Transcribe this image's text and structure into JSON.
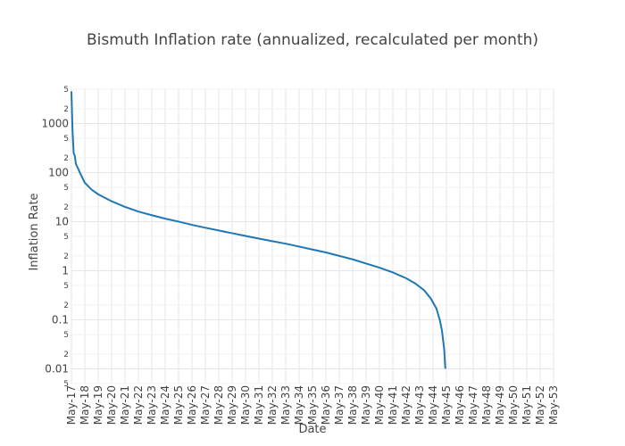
{
  "chart_data": {
    "type": "line",
    "title": "Bismuth Inflation rate (annualized, recalculated per month)",
    "xlabel": "Date",
    "ylabel": "Inflation Rate",
    "y_scale": "log",
    "ylim": [
      0.005,
      5000
    ],
    "grid": true,
    "legend": "none",
    "x_tick_labels": [
      "May-17",
      "May-18",
      "May-19",
      "May-20",
      "May-21",
      "May-22",
      "May-23",
      "May-24",
      "May-25",
      "May-26",
      "May-27",
      "May-28",
      "May-29",
      "May-30",
      "May-31",
      "May-32",
      "May-33",
      "May-34",
      "May-35",
      "May-36",
      "May-37",
      "May-38",
      "May-39",
      "May-40",
      "May-41",
      "May-42",
      "May-43",
      "May-44",
      "May-45",
      "May-46",
      "May-47",
      "May-48",
      "May-49",
      "May-50",
      "May-51",
      "May-52",
      "May-53"
    ],
    "y_major_ticks": [
      {
        "value": 0.01,
        "label": "0.01"
      },
      {
        "value": 0.1,
        "label": "0.1"
      },
      {
        "value": 1,
        "label": "1"
      },
      {
        "value": 10,
        "label": "10"
      },
      {
        "value": 100,
        "label": "100"
      },
      {
        "value": 1000,
        "label": "1000"
      }
    ],
    "y_minor_ticks": [
      {
        "value": 0.005,
        "label": "5"
      },
      {
        "value": 0.02,
        "label": "2"
      },
      {
        "value": 0.05,
        "label": "5"
      },
      {
        "value": 0.2,
        "label": "2"
      },
      {
        "value": 0.5,
        "label": "5"
      },
      {
        "value": 2,
        "label": "2"
      },
      {
        "value": 5,
        "label": "5"
      },
      {
        "value": 20,
        "label": "2"
      },
      {
        "value": 50,
        "label": "5"
      },
      {
        "value": 200,
        "label": "2"
      },
      {
        "value": 500,
        "label": "5"
      },
      {
        "value": 2000,
        "label": "2"
      },
      {
        "value": 5000,
        "label": "5"
      }
    ],
    "series": [
      {
        "color": "#1f77b4",
        "points": [
          {
            "x": "2017-05",
            "y": 4500
          },
          {
            "x": "2017-06",
            "y": 700
          },
          {
            "x": "2017-07",
            "y": 250
          },
          {
            "x": "2017-08",
            "y": 220
          },
          {
            "x": "2017-09",
            "y": 150
          },
          {
            "x": "2017-11",
            "y": 120
          },
          {
            "x": "2018-01",
            "y": 95
          },
          {
            "x": "2018-05",
            "y": 62
          },
          {
            "x": "2018-11",
            "y": 45
          },
          {
            "x": "2019-05",
            "y": 36
          },
          {
            "x": "2020-05",
            "y": 26
          },
          {
            "x": "2021-05",
            "y": 20
          },
          {
            "x": "2022-05",
            "y": 16
          },
          {
            "x": "2023-05",
            "y": 13.5
          },
          {
            "x": "2024-05",
            "y": 11.5
          },
          {
            "x": "2025-05",
            "y": 10
          },
          {
            "x": "2026-05",
            "y": 8.6
          },
          {
            "x": "2027-05",
            "y": 7.5
          },
          {
            "x": "2028-05",
            "y": 6.6
          },
          {
            "x": "2029-05",
            "y": 5.8
          },
          {
            "x": "2030-05",
            "y": 5.1
          },
          {
            "x": "2031-05",
            "y": 4.5
          },
          {
            "x": "2032-05",
            "y": 4.0
          },
          {
            "x": "2033-05",
            "y": 3.55
          },
          {
            "x": "2034-05",
            "y": 3.1
          },
          {
            "x": "2035-05",
            "y": 2.7
          },
          {
            "x": "2036-05",
            "y": 2.35
          },
          {
            "x": "2037-05",
            "y": 2.0
          },
          {
            "x": "2038-05",
            "y": 1.7
          },
          {
            "x": "2039-05",
            "y": 1.4
          },
          {
            "x": "2040-05",
            "y": 1.15
          },
          {
            "x": "2041-05",
            "y": 0.92
          },
          {
            "x": "2042-05",
            "y": 0.7
          },
          {
            "x": "2043-01",
            "y": 0.55
          },
          {
            "x": "2043-09",
            "y": 0.4
          },
          {
            "x": "2044-03",
            "y": 0.27
          },
          {
            "x": "2044-08",
            "y": 0.17
          },
          {
            "x": "2044-11",
            "y": 0.1
          },
          {
            "x": "2045-01",
            "y": 0.06
          },
          {
            "x": "2045-03",
            "y": 0.025
          },
          {
            "x": "2045-04",
            "y": 0.01
          }
        ]
      }
    ]
  }
}
